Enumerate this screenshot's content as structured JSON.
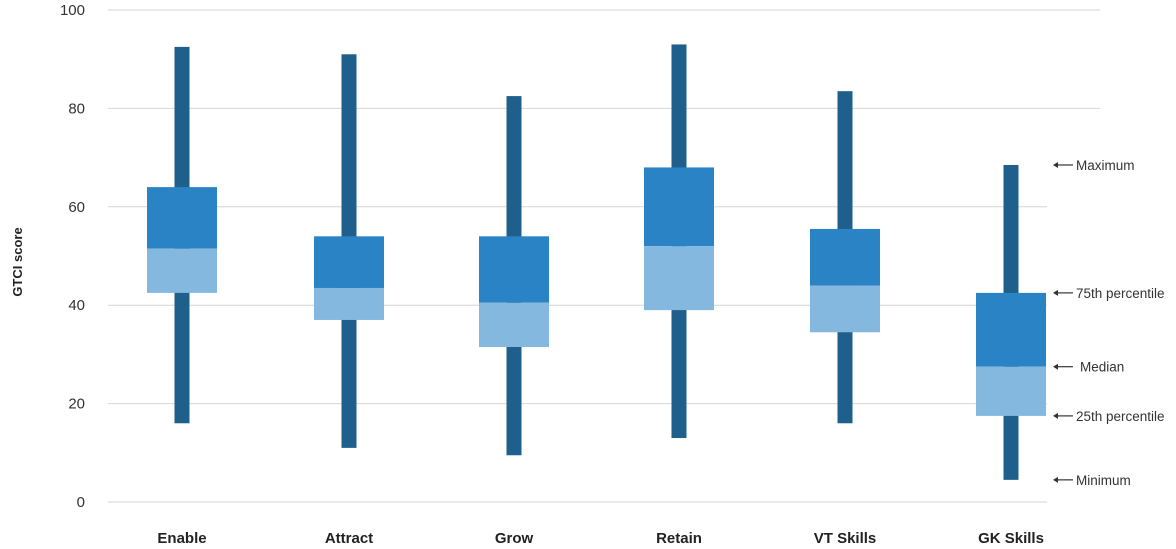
{
  "chart_data": {
    "type": "box",
    "ylabel": "GTCI score",
    "ylim": [
      0,
      100
    ],
    "yticks": [
      "0",
      "20",
      "40",
      "60",
      "80",
      "100"
    ],
    "grid": true,
    "categories": [
      "Enable",
      "Attract",
      "Grow",
      "Retain",
      "VT Skills",
      "GK Skills"
    ],
    "boxes": [
      {
        "category": "Enable",
        "min": 16.0,
        "q1": 42.5,
        "median": 51.5,
        "q3": 64.0,
        "max": 92.5
      },
      {
        "category": "Attract",
        "min": 11.0,
        "q1": 37.0,
        "median": 43.5,
        "q3": 54.0,
        "max": 91.0
      },
      {
        "category": "Grow",
        "min": 9.5,
        "q1": 31.5,
        "median": 40.5,
        "q3": 54.0,
        "max": 82.5
      },
      {
        "category": "Retain",
        "min": 13.0,
        "q1": 39.0,
        "median": 52.0,
        "q3": 68.0,
        "max": 93.0
      },
      {
        "category": "VT Skills",
        "min": 16.0,
        "q1": 34.5,
        "median": 44.0,
        "q3": 55.5,
        "max": 83.5
      },
      {
        "category": "GK Skills",
        "min": 4.5,
        "q1": 17.5,
        "median": 27.5,
        "q3": 42.5,
        "max": 68.5
      }
    ],
    "annotations": [
      "Maximum",
      "75th percentile",
      "Median",
      "25th percentile",
      "Minimum"
    ],
    "colors": {
      "whisker": "#1f5f8b",
      "upper_box": "#2a83c4",
      "lower_box": "#85b8de",
      "grid": "#d6d6d6"
    }
  }
}
